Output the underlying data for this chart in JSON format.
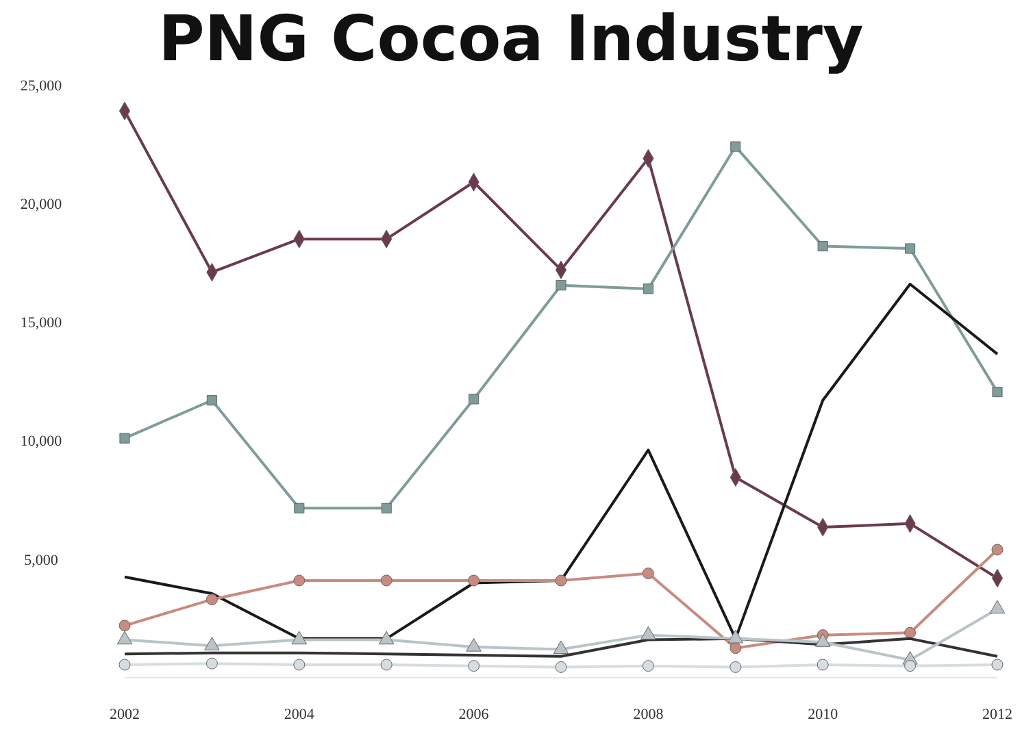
{
  "chart_data": {
    "type": "line",
    "title": "PNG Cocoa Industry",
    "x": [
      2002,
      2003,
      2004,
      2005,
      2006,
      2007,
      2008,
      2009,
      2010,
      2011,
      2012
    ],
    "xlim": [
      2002,
      2012
    ],
    "xticks": [
      2002,
      2004,
      2006,
      2008,
      2010,
      2012
    ],
    "ylim": [
      0,
      25000
    ],
    "yticks": [
      {
        "value": 5000,
        "label": "5,000"
      },
      {
        "value": 10000,
        "label": "10,000"
      },
      {
        "value": 15000,
        "label": "15,000"
      },
      {
        "value": 20000,
        "label": "20,000"
      },
      {
        "value": 25000,
        "label": "25,000"
      }
    ],
    "grid": false,
    "line_style": "solid",
    "series": [
      {
        "color": "#6b3a4e",
        "marker": "diamond",
        "values": [
          23900,
          17100,
          18500,
          18500,
          20900,
          17200,
          21900,
          8450,
          6350,
          6500,
          4200
        ]
      },
      {
        "color": "#7e9c9a",
        "marker": "square",
        "values": [
          10100,
          11700,
          7150,
          7150,
          11750,
          16550,
          16400,
          22400,
          18200,
          18100,
          12050
        ]
      },
      {
        "color": "#1a1a1a",
        "marker": "none",
        "values": [
          4250,
          3550,
          1650,
          1650,
          4000,
          4100,
          9600,
          1650,
          11700,
          16600,
          13650
        ]
      },
      {
        "color": "#c98a80",
        "marker": "circle",
        "values": [
          2200,
          3300,
          4100,
          4100,
          4100,
          4100,
          4400,
          1250,
          1800,
          1900,
          5400
        ]
      },
      {
        "color": "#333333",
        "marker": "none",
        "values": [
          1000,
          1050,
          1050,
          1000,
          950,
          900,
          1600,
          1650,
          1400,
          1650,
          900
        ]
      },
      {
        "color": "#b8c4c8",
        "marker": "triangle",
        "values": [
          1600,
          1350,
          1600,
          1600,
          1300,
          1200,
          1800,
          1650,
          1500,
          750,
          2900
        ]
      },
      {
        "color": "#d6dde0",
        "marker": "circle",
        "values": [
          550,
          600,
          550,
          550,
          500,
          450,
          500,
          450,
          550,
          500,
          550
        ]
      }
    ]
  }
}
